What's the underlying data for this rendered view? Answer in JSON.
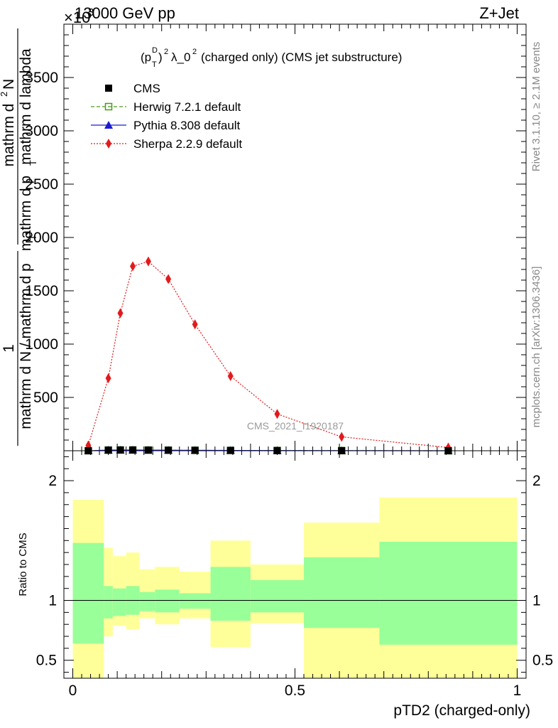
{
  "header": {
    "left": "13000 GeV pp",
    "right": "Z+Jet",
    "multiplier": "×10"
  },
  "side_text": {
    "rivet": "Rivet 3.1.10, ≥ 2.1M events",
    "mcplots": "mcplots.cern.ch [arXiv:1306.3436]"
  },
  "watermark": "CMS_2021_I1920187",
  "chart_data": [
    {
      "type": "line",
      "title": "(p_T^D)^2 λ_0^2 (charged only) (CMS jet substructure)",
      "xlabel": "pTD2 (charged-only)",
      "ylabel": "1 / mathrm d N / mathrm d p_T  mathrm d^2N / mathrm d p_T mathrm d lambda",
      "ylabel_parts": {
        "frac_numerator": "1",
        "frac_denominator": "mathrm d N / mathrm d p",
        "sub_T": "T",
        "second_numerator": "mathrm d",
        "second_numerator_sup": "2",
        "second_numerator_tail": "N",
        "second_denominator": "mathrm d p",
        "second_denominator_tail": " mathrm d lambda"
      },
      "xlim": [
        -0.02,
        1.02
      ],
      "ylim": [
        0,
        4000
      ],
      "y_multiplier_exp": "3",
      "xticks": [
        "0",
        "0.5",
        "1"
      ],
      "xtick_values": [
        0,
        0.5,
        1
      ],
      "yticks": [
        "500",
        "1000",
        "1500",
        "2000",
        "2500",
        "3000",
        "3500"
      ],
      "ytick_values": [
        500,
        1000,
        1500,
        2000,
        2500,
        3000,
        3500
      ],
      "legend_position": "top-left",
      "legend": [
        {
          "label": "CMS",
          "marker": "square-filled",
          "color": "#000000",
          "line": "none"
        },
        {
          "label": "Herwig 7.2.1 default",
          "marker": "square-open",
          "color": "#4a9a1a",
          "line": "dashed"
        },
        {
          "label": "Pythia 8.308 default",
          "marker": "triangle",
          "color": "#1a1ad0",
          "line": "solid"
        },
        {
          "label": "Sherpa 2.2.9 default",
          "marker": "diamond",
          "color": "#e31a1c",
          "line": "dotted"
        }
      ],
      "series": [
        {
          "name": "CMS",
          "x": [
            0.035,
            0.08,
            0.107,
            0.135,
            0.17,
            0.215,
            0.275,
            0.355,
            0.46,
            0.605,
            0.845
          ],
          "values": [
            0,
            6,
            7,
            7,
            6,
            5,
            4,
            3,
            2,
            1,
            0
          ]
        },
        {
          "name": "Herwig 7.2.1 default",
          "x": [
            0.035,
            0.08,
            0.107,
            0.135,
            0.17,
            0.215,
            0.275,
            0.355,
            0.46,
            0.605,
            0.845
          ],
          "values": [
            0,
            6,
            7,
            7,
            6,
            5,
            4,
            3,
            2,
            1,
            0
          ]
        },
        {
          "name": "Pythia 8.308 default",
          "x": [
            0.035,
            0.08,
            0.107,
            0.135,
            0.17,
            0.215,
            0.275,
            0.355,
            0.46,
            0.605,
            0.845
          ],
          "values": [
            0,
            6,
            7,
            7,
            6,
            5,
            4,
            3,
            2,
            1,
            0
          ]
        },
        {
          "name": "Sherpa 2.2.9 default",
          "x": [
            0.035,
            0.08,
            0.107,
            0.135,
            0.17,
            0.215,
            0.275,
            0.355,
            0.46,
            0.605,
            0.845
          ],
          "values": [
            50,
            680,
            1290,
            1730,
            1775,
            1610,
            1185,
            700,
            345,
            130,
            30
          ]
        }
      ]
    },
    {
      "type": "area",
      "ylabel": "Ratio to CMS",
      "xlabel": "pTD2 (charged-only)",
      "xlim": [
        -0.02,
        1.02
      ],
      "ylim": [
        0.35,
        2.25
      ],
      "yticks": [
        "0.5",
        "1",
        "2"
      ],
      "ytick_values": [
        0.5,
        1,
        2
      ],
      "reference_line": 1,
      "bins": [
        {
          "x0": 0.0,
          "x1": 0.07,
          "green": [
            0.64,
            1.48
          ],
          "yellow": [
            0.35,
            1.84
          ]
        },
        {
          "x0": 0.07,
          "x1": 0.09,
          "green": [
            0.85,
            1.12
          ],
          "yellow": [
            0.7,
            1.44
          ]
        },
        {
          "x0": 0.09,
          "x1": 0.12,
          "green": [
            0.87,
            1.1
          ],
          "yellow": [
            0.79,
            1.37
          ]
        },
        {
          "x0": 0.12,
          "x1": 0.15,
          "green": [
            0.88,
            1.12
          ],
          "yellow": [
            0.76,
            1.4
          ]
        },
        {
          "x0": 0.15,
          "x1": 0.185,
          "green": [
            0.91,
            1.07
          ],
          "yellow": [
            0.85,
            1.26
          ]
        },
        {
          "x0": 0.185,
          "x1": 0.24,
          "green": [
            0.9,
            1.09
          ],
          "yellow": [
            0.8,
            1.28
          ]
        },
        {
          "x0": 0.24,
          "x1": 0.31,
          "green": [
            0.93,
            1.06
          ],
          "yellow": [
            0.85,
            1.24
          ]
        },
        {
          "x0": 0.31,
          "x1": 0.4,
          "green": [
            0.83,
            1.28
          ],
          "yellow": [
            0.61,
            1.5
          ]
        },
        {
          "x0": 0.4,
          "x1": 0.52,
          "green": [
            0.9,
            1.17
          ],
          "yellow": [
            0.81,
            1.3
          ]
        },
        {
          "x0": 0.52,
          "x1": 0.69,
          "green": [
            0.77,
            1.36
          ],
          "yellow": [
            0.35,
            1.65
          ]
        },
        {
          "x0": 0.69,
          "x1": 1.0,
          "green": [
            0.63,
            1.49
          ],
          "yellow": [
            0.35,
            1.86
          ]
        }
      ]
    }
  ]
}
